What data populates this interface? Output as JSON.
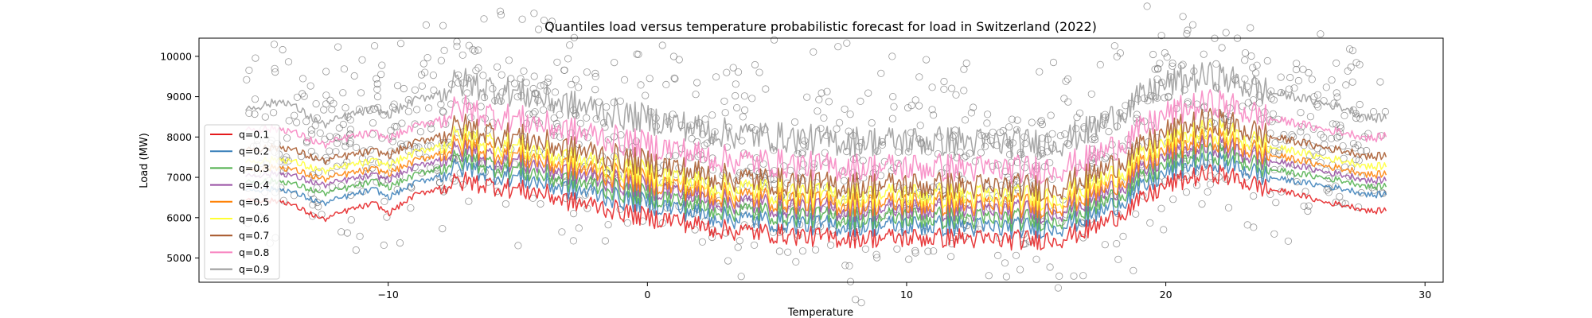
{
  "chart_data": {
    "type": "line",
    "title": "Quantiles load versus temperature probabilistic forecast for load in Switzerland (2022)",
    "xlabel": "Temperature",
    "ylabel": "Load (MW)",
    "xlim": [
      -17.3,
      30.7
    ],
    "ylim": [
      4400,
      10450
    ],
    "x_ticks": [
      -10,
      0,
      10,
      20,
      30
    ],
    "x_tick_labels": [
      "−10",
      "0",
      "10",
      "20",
      "30"
    ],
    "y_ticks": [
      5000,
      6000,
      7000,
      8000,
      9000,
      10000
    ],
    "y_tick_labels": [
      "5000",
      "6000",
      "7000",
      "8000",
      "9000",
      "10000"
    ],
    "grid": false,
    "legend_position": "left",
    "x": [
      -15.5,
      -14,
      -12.5,
      -11.5,
      -10.5,
      -10,
      -9,
      -8,
      -7.5,
      -7,
      -6,
      -5,
      -4,
      -3,
      -2,
      -1,
      0,
      1,
      2,
      3,
      4,
      5,
      6,
      7,
      8,
      9,
      10,
      11,
      12,
      13,
      14,
      15,
      16,
      17,
      18,
      19,
      20,
      21,
      22,
      23,
      24,
      25,
      26,
      27,
      28,
      28.5
    ],
    "series": [
      {
        "name": "q=0.1",
        "color": "#e41a1c",
        "values": [
          6450,
          6400,
          5950,
          6200,
          6350,
          6100,
          6550,
          6750,
          6850,
          6900,
          6800,
          6700,
          6600,
          6400,
          6300,
          6150,
          6000,
          5950,
          5800,
          5700,
          5650,
          5600,
          5550,
          5500,
          5500,
          5500,
          5500,
          5500,
          5500,
          5450,
          5450,
          5450,
          5500,
          5700,
          6000,
          6400,
          6800,
          7000,
          7100,
          6900,
          6700,
          6600,
          6400,
          6300,
          6150,
          6200
        ]
      },
      {
        "name": "q=0.2",
        "color": "#377eb8",
        "values": [
          6700,
          6700,
          6350,
          6550,
          6700,
          6500,
          6850,
          7050,
          7200,
          7250,
          7100,
          7000,
          6850,
          6700,
          6600,
          6450,
          6350,
          6250,
          6100,
          6000,
          5950,
          5900,
          5850,
          5800,
          5800,
          5800,
          5800,
          5800,
          5800,
          5750,
          5750,
          5750,
          5800,
          6000,
          6300,
          6700,
          7100,
          7300,
          7400,
          7200,
          7000,
          6900,
          6800,
          6700,
          6550,
          6600
        ]
      },
      {
        "name": "q=0.3",
        "color": "#4daf4a",
        "values": [
          6900,
          6900,
          6600,
          6750,
          6900,
          6750,
          7050,
          7250,
          7400,
          7450,
          7300,
          7200,
          7050,
          6900,
          6800,
          6650,
          6550,
          6450,
          6300,
          6200,
          6150,
          6100,
          6050,
          6000,
          6000,
          6000,
          6000,
          6000,
          6000,
          5950,
          5950,
          5950,
          6000,
          6200,
          6500,
          6900,
          7300,
          7500,
          7600,
          7400,
          7200,
          7100,
          7000,
          6900,
          6750,
          6800
        ]
      },
      {
        "name": "q=0.4",
        "color": "#984ea3",
        "values": [
          7050,
          7100,
          6800,
          6950,
          7050,
          6950,
          7250,
          7450,
          7600,
          7650,
          7500,
          7400,
          7250,
          7100,
          7000,
          6850,
          6750,
          6650,
          6500,
          6400,
          6350,
          6300,
          6250,
          6200,
          6200,
          6200,
          6200,
          6200,
          6200,
          6150,
          6150,
          6150,
          6200,
          6400,
          6700,
          7100,
          7500,
          7700,
          7800,
          7600,
          7400,
          7300,
          7150,
          7050,
          6900,
          6950
        ]
      },
      {
        "name": "q=0.5",
        "color": "#ff7f00",
        "values": [
          7200,
          7250,
          6950,
          7100,
          7200,
          7100,
          7400,
          7600,
          7750,
          7800,
          7650,
          7550,
          7400,
          7250,
          7150,
          7000,
          6900,
          6800,
          6650,
          6550,
          6500,
          6450,
          6400,
          6350,
          6350,
          6350,
          6350,
          6350,
          6350,
          6300,
          6300,
          6300,
          6350,
          6550,
          6850,
          7250,
          7650,
          7850,
          7950,
          7750,
          7550,
          7450,
          7300,
          7200,
          7050,
          7100
        ]
      },
      {
        "name": "q=0.6",
        "color": "#ffff33",
        "values": [
          7400,
          7450,
          7150,
          7300,
          7400,
          7300,
          7600,
          7800,
          7950,
          8000,
          7850,
          7750,
          7600,
          7450,
          7350,
          7200,
          7100,
          7000,
          6850,
          6750,
          6700,
          6650,
          6600,
          6550,
          6550,
          6550,
          6550,
          6550,
          6550,
          6500,
          6500,
          6500,
          6550,
          6750,
          7050,
          7450,
          7850,
          8050,
          8150,
          7950,
          7750,
          7650,
          7500,
          7400,
          7250,
          7300
        ]
      },
      {
        "name": "q=0.7",
        "color": "#a65628",
        "values": [
          7700,
          7750,
          7400,
          7550,
          7650,
          7550,
          7850,
          8050,
          8200,
          8250,
          8100,
          8000,
          7850,
          7700,
          7600,
          7450,
          7350,
          7250,
          7100,
          7000,
          6950,
          6900,
          6850,
          6800,
          6800,
          6800,
          6800,
          6800,
          6800,
          6750,
          6750,
          6750,
          6800,
          7000,
          7300,
          7700,
          8100,
          8300,
          8400,
          8200,
          8000,
          7900,
          7750,
          7650,
          7500,
          7550
        ]
      },
      {
        "name": "q=0.8",
        "color": "#f781bf",
        "values": [
          8200,
          8200,
          7800,
          8000,
          8100,
          7950,
          8250,
          8450,
          8650,
          8700,
          8550,
          8450,
          8300,
          8150,
          8050,
          7900,
          7800,
          7700,
          7550,
          7450,
          7400,
          7350,
          7300,
          7250,
          7250,
          7250,
          7250,
          7250,
          7250,
          7200,
          7200,
          7200,
          7250,
          7450,
          7750,
          8150,
          8550,
          8750,
          8850,
          8650,
          8450,
          8350,
          8200,
          8100,
          7950,
          8050
        ]
      },
      {
        "name": "q=0.9",
        "color": "#999999",
        "values": [
          8700,
          8900,
          8300,
          8550,
          8700,
          8550,
          8900,
          9100,
          9300,
          9350,
          9200,
          9100,
          8950,
          8800,
          8700,
          8550,
          8450,
          8350,
          8200,
          8100,
          8050,
          8000,
          7950,
          7900,
          7900,
          7900,
          7900,
          7900,
          7900,
          7850,
          7850,
          7850,
          7900,
          8150,
          8500,
          8950,
          9300,
          9450,
          9500,
          9300,
          9100,
          9000,
          8850,
          8700,
          8450,
          8500
        ]
      }
    ]
  }
}
